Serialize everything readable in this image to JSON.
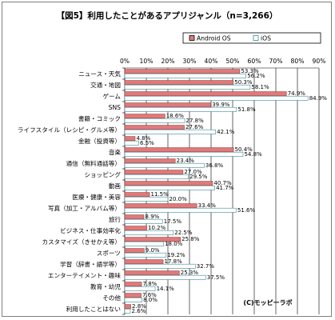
{
  "chart_data": {
    "type": "bar",
    "orientation": "horizontal",
    "title": "【図5】利用したことがあるアプリジャンル（n=3,266）",
    "xlabel": "",
    "ylabel": "",
    "xlim": [
      0,
      90
    ],
    "x_ticks": [
      "0%",
      "10%",
      "20%",
      "30%",
      "40%",
      "50%",
      "60%",
      "70%",
      "80%",
      "90%"
    ],
    "grid": true,
    "legend_position": "top-right",
    "categories": [
      "ニュース・天気",
      "交通・地図",
      "ゲーム",
      "SNS",
      "書籍・コミック",
      "ライフスタイル（レシピ・グルメ等）",
      "金融（投資等）",
      "音楽",
      "通信（無料通話等）",
      "ショッピング",
      "動画",
      "医療・健康・美容",
      "写真（加工・アルバム等）",
      "旅行",
      "ビジネス・仕事効率化",
      "カスタマイズ（きせかえ等）",
      "スポーツ",
      "学習（辞書・語学等）",
      "エンターテイメント・趣味",
      "教育・幼児",
      "その他",
      "利用したことはない"
    ],
    "series": [
      {
        "name": "Android OS",
        "color": "#e07a7a",
        "values": [
          53.3,
          50.3,
          74.9,
          39.9,
          18.6,
          27.6,
          4.8,
          50.4,
          23.4,
          27.0,
          40.7,
          11.5,
          33.4,
          8.9,
          10.2,
          25.8,
          9.0,
          17.8,
          25.3,
          7.8,
          7.6,
          2.8
        ],
        "labels": [
          "53.3%",
          "50.3%",
          "74.9%",
          "39.9%",
          "18.6%",
          "27.6%",
          "4.8%",
          "50.4%",
          "23.4%",
          "27.0%",
          "40.7%",
          "11.5%",
          "33.4%",
          "8.9%",
          "10.2%",
          "25.8%",
          "9.0%",
          "17.8%",
          "25.3%",
          "7.8%",
          "7.6%",
          "2.8%"
        ]
      },
      {
        "name": "iOS",
        "color": "#ffffff",
        "border": "#3b8a96",
        "values": [
          56.2,
          58.1,
          84.9,
          51.8,
          27.8,
          42.1,
          6.5,
          54.8,
          36.8,
          29.5,
          41.7,
          20.0,
          51.6,
          17.5,
          22.5,
          18.0,
          19.2,
          32.7,
          37.5,
          14.1,
          8.0,
          2.6
        ],
        "labels": [
          "56.2%",
          "58.1%",
          "84.9%",
          "51.8%",
          "27.8%",
          "42.1%",
          "6.5%",
          "54.8%",
          "36.8%",
          "29.5%",
          "41.7%",
          "20.0%",
          "51.6%",
          "17.5%",
          "22.5%",
          "18.0%",
          "19.2%",
          "32.7%",
          "37.5%",
          "14.1%",
          "8.0%",
          "2.6%"
        ]
      }
    ],
    "credit": "(C)モッピーラボ"
  }
}
